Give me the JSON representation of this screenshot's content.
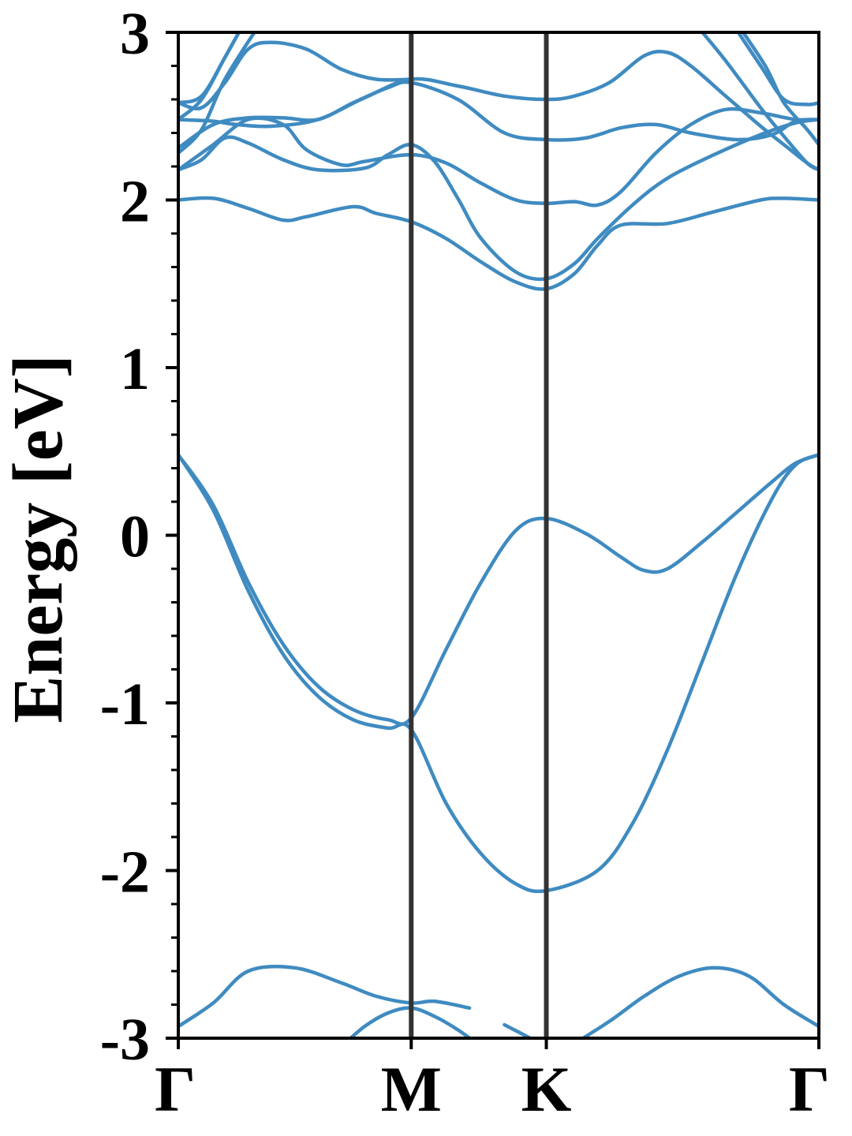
{
  "chart_data": {
    "type": "line",
    "title": "",
    "xlabel": "",
    "ylabel": "Energy [eV]",
    "ylim": [
      -3,
      3
    ],
    "xlim": [
      0,
      2.75
    ],
    "y_ticks": [
      {
        "value": 3,
        "label": "3"
      },
      {
        "value": 2,
        "label": "2"
      },
      {
        "value": 1,
        "label": "1"
      },
      {
        "value": 0,
        "label": "0"
      },
      {
        "value": -1,
        "label": "-1"
      },
      {
        "value": -2,
        "label": "-2"
      },
      {
        "value": -3,
        "label": "-3"
      }
    ],
    "y_minor_step": 0.2,
    "k_points": [
      {
        "label": "Γ",
        "x": 0
      },
      {
        "label": "M",
        "x": 1.0
      },
      {
        "label": "K",
        "x": 1.58
      },
      {
        "label": "Γ",
        "x": 2.75
      }
    ],
    "line_color": "#3f8bc1",
    "divider_color": "#333333",
    "grid": false,
    "legend": "none",
    "series": [
      {
        "points": [
          [
            0,
            0.48
          ],
          [
            0.15,
            0.18
          ],
          [
            0.3,
            -0.28
          ],
          [
            0.45,
            -0.65
          ],
          [
            0.6,
            -0.9
          ],
          [
            0.75,
            -1.04
          ],
          [
            0.9,
            -1.1
          ],
          [
            1.0,
            -1.09
          ],
          [
            1.15,
            -0.68
          ],
          [
            1.3,
            -0.28
          ],
          [
            1.45,
            0.03
          ],
          [
            1.58,
            0.1
          ],
          [
            1.75,
            0.01
          ],
          [
            1.9,
            -0.13
          ],
          [
            2.0,
            -0.21
          ],
          [
            2.1,
            -0.2
          ],
          [
            2.25,
            -0.04
          ],
          [
            2.4,
            0.14
          ],
          [
            2.55,
            0.32
          ],
          [
            2.65,
            0.43
          ],
          [
            2.75,
            0.48
          ]
        ]
      },
      {
        "points": [
          [
            0,
            0.48
          ],
          [
            0.15,
            0.15
          ],
          [
            0.3,
            -0.33
          ],
          [
            0.45,
            -0.71
          ],
          [
            0.6,
            -0.96
          ],
          [
            0.75,
            -1.1
          ],
          [
            0.9,
            -1.15
          ],
          [
            1.0,
            -1.16
          ],
          [
            1.15,
            -1.6
          ],
          [
            1.3,
            -1.9
          ],
          [
            1.45,
            -2.08
          ],
          [
            1.58,
            -2.12
          ],
          [
            1.8,
            -2.0
          ],
          [
            1.95,
            -1.72
          ],
          [
            2.1,
            -1.28
          ],
          [
            2.25,
            -0.75
          ],
          [
            2.4,
            -0.22
          ],
          [
            2.55,
            0.22
          ],
          [
            2.65,
            0.42
          ],
          [
            2.75,
            0.48
          ]
        ]
      },
      {
        "points": [
          [
            0,
            2.0
          ],
          [
            0.15,
            2.01
          ],
          [
            0.3,
            1.95
          ],
          [
            0.45,
            1.88
          ],
          [
            0.55,
            1.9
          ],
          [
            0.75,
            1.96
          ],
          [
            0.85,
            1.92
          ],
          [
            1.0,
            1.87
          ],
          [
            1.15,
            1.77
          ],
          [
            1.3,
            1.63
          ],
          [
            1.45,
            1.51
          ],
          [
            1.58,
            1.47
          ],
          [
            1.7,
            1.56
          ],
          [
            1.8,
            1.73
          ],
          [
            1.9,
            1.85
          ],
          [
            2.1,
            1.86
          ],
          [
            2.3,
            1.93
          ],
          [
            2.5,
            2.0
          ],
          [
            2.6,
            2.01
          ],
          [
            2.75,
            2.0
          ]
        ]
      },
      {
        "points": [
          [
            0,
            2.18
          ],
          [
            0.1,
            2.24
          ],
          [
            0.2,
            2.37
          ],
          [
            0.3,
            2.34
          ],
          [
            0.45,
            2.24
          ],
          [
            0.6,
            2.18
          ],
          [
            0.8,
            2.19
          ],
          [
            0.9,
            2.27
          ],
          [
            1.0,
            2.33
          ],
          [
            1.1,
            2.23
          ],
          [
            1.2,
            2.01
          ],
          [
            1.3,
            1.77
          ],
          [
            1.45,
            1.57
          ],
          [
            1.58,
            1.53
          ],
          [
            1.7,
            1.62
          ],
          [
            1.8,
            1.77
          ],
          [
            1.95,
            1.97
          ],
          [
            2.1,
            2.13
          ],
          [
            2.3,
            2.27
          ],
          [
            2.5,
            2.39
          ],
          [
            2.65,
            2.46
          ],
          [
            2.75,
            2.48
          ]
        ]
      },
      {
        "points": [
          [
            0,
            2.18
          ],
          [
            0.15,
            2.33
          ],
          [
            0.3,
            2.48
          ],
          [
            0.45,
            2.45
          ],
          [
            0.55,
            2.3
          ],
          [
            0.7,
            2.21
          ],
          [
            0.8,
            2.23
          ],
          [
            1.0,
            2.27
          ],
          [
            1.15,
            2.22
          ],
          [
            1.3,
            2.1
          ],
          [
            1.45,
            2.0
          ],
          [
            1.58,
            1.98
          ],
          [
            1.7,
            1.99
          ],
          [
            1.8,
            1.97
          ],
          [
            1.9,
            2.05
          ],
          [
            2.05,
            2.28
          ],
          [
            2.2,
            2.45
          ],
          [
            2.35,
            2.54
          ],
          [
            2.5,
            2.52
          ],
          [
            2.65,
            2.48
          ],
          [
            2.75,
            2.48
          ]
        ]
      },
      {
        "points": [
          [
            0,
            2.31
          ],
          [
            0.15,
            2.45
          ],
          [
            0.3,
            2.49
          ],
          [
            0.45,
            2.49
          ],
          [
            0.6,
            2.48
          ],
          [
            0.75,
            2.58
          ],
          [
            0.9,
            2.67
          ],
          [
            1.0,
            2.7
          ],
          [
            1.2,
            2.6
          ],
          [
            1.4,
            2.4
          ],
          [
            1.58,
            2.36
          ],
          [
            1.75,
            2.37
          ],
          [
            1.9,
            2.43
          ],
          [
            2.05,
            2.45
          ],
          [
            2.2,
            2.4
          ],
          [
            2.4,
            2.36
          ],
          [
            2.55,
            2.39
          ],
          [
            2.65,
            2.47
          ],
          [
            2.75,
            2.48
          ]
        ]
      },
      {
        "points": [
          [
            0,
            2.48
          ],
          [
            0.15,
            2.47
          ],
          [
            0.25,
            2.45
          ],
          [
            0.4,
            2.44
          ],
          [
            0.6,
            2.48
          ],
          [
            0.8,
            2.61
          ],
          [
            1.0,
            2.72
          ],
          [
            1.2,
            2.68
          ],
          [
            1.4,
            2.62
          ],
          [
            1.58,
            2.6
          ],
          [
            1.7,
            2.62
          ],
          [
            1.85,
            2.7
          ],
          [
            2.0,
            2.86
          ],
          [
            2.1,
            2.88
          ],
          [
            2.2,
            2.8
          ],
          [
            2.35,
            2.62
          ],
          [
            2.5,
            2.44
          ],
          [
            2.6,
            2.33
          ],
          [
            2.7,
            2.22
          ],
          [
            2.75,
            2.18
          ]
        ]
      },
      {
        "points": [
          [
            0,
            2.58
          ],
          [
            0.1,
            2.55
          ],
          [
            0.2,
            2.7
          ],
          [
            0.3,
            2.9
          ],
          [
            0.4,
            2.94
          ],
          [
            0.55,
            2.9
          ],
          [
            0.7,
            2.78
          ],
          [
            0.85,
            2.72
          ],
          [
            1.0,
            2.72
          ]
        ]
      },
      {
        "points": [
          [
            0,
            2.58
          ],
          [
            0.1,
            2.62
          ],
          [
            0.2,
            2.85
          ],
          [
            0.28,
            3.05
          ]
        ]
      },
      {
        "points": [
          [
            0,
            2.48
          ],
          [
            0.1,
            2.6
          ],
          [
            0.2,
            2.85
          ],
          [
            0.28,
            3.05
          ]
        ]
      },
      {
        "points": [
          [
            0,
            2.28
          ],
          [
            0.1,
            2.42
          ],
          [
            0.2,
            2.72
          ],
          [
            0.35,
            3.05
          ]
        ]
      },
      {
        "points": [
          [
            2.38,
            3.05
          ],
          [
            2.5,
            2.8
          ],
          [
            2.6,
            2.6
          ],
          [
            2.7,
            2.57
          ],
          [
            2.75,
            2.58
          ]
        ]
      },
      {
        "points": [
          [
            2.4,
            3.05
          ],
          [
            2.52,
            2.8
          ],
          [
            2.6,
            2.58
          ],
          [
            2.7,
            2.42
          ],
          [
            2.75,
            2.33
          ]
        ]
      },
      {
        "points": [
          [
            2.22,
            3.05
          ],
          [
            2.35,
            2.83
          ],
          [
            2.5,
            2.55
          ],
          [
            2.6,
            2.38
          ],
          [
            2.7,
            2.22
          ],
          [
            2.75,
            2.18
          ]
        ]
      },
      {
        "points": [
          [
            0,
            -2.93
          ],
          [
            0.15,
            -2.79
          ],
          [
            0.3,
            -2.6
          ],
          [
            0.5,
            -2.58
          ],
          [
            0.7,
            -2.67
          ],
          [
            0.85,
            -2.75
          ],
          [
            1.0,
            -2.79
          ],
          [
            1.1,
            -2.78
          ],
          [
            1.25,
            -2.82
          ]
        ]
      },
      {
        "points": [
          [
            0.7,
            -3.05
          ],
          [
            0.8,
            -2.93
          ],
          [
            0.9,
            -2.85
          ],
          [
            1.0,
            -2.82
          ],
          [
            1.1,
            -2.87
          ],
          [
            1.2,
            -2.95
          ],
          [
            1.3,
            -3.05
          ]
        ]
      },
      {
        "points": [
          [
            1.4,
            -2.92
          ],
          [
            1.58,
            -3.05
          ]
        ]
      },
      {
        "points": [
          [
            1.68,
            -3.05
          ],
          [
            1.85,
            -2.9
          ],
          [
            2.0,
            -2.75
          ],
          [
            2.15,
            -2.63
          ],
          [
            2.3,
            -2.58
          ],
          [
            2.45,
            -2.63
          ],
          [
            2.6,
            -2.8
          ],
          [
            2.75,
            -2.93
          ]
        ]
      }
    ]
  }
}
